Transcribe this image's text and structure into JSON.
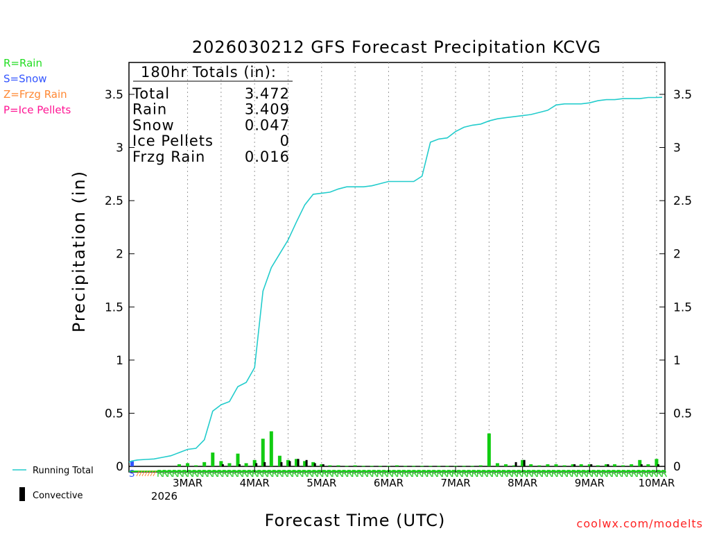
{
  "chart_data": {
    "type": "line",
    "title": "2026030212 GFS Forecast Precipitation KCVG",
    "xlabel": "Forecast Time (UTC)",
    "ylabel": "Precipitation (in)",
    "ylim": [
      0,
      3.8
    ],
    "xlim_hours": [
      -9,
      183
    ],
    "yticks": [
      "0",
      "0.5",
      "1",
      "1.5",
      "2",
      "2.5",
      "3",
      "3.5"
    ],
    "ytick_values": [
      0,
      0.5,
      1,
      1.5,
      2,
      2.5,
      3,
      3.5
    ],
    "xticks": [
      {
        "label": "3MAR",
        "hour": 12
      },
      {
        "label": "4MAR",
        "hour": 36
      },
      {
        "label": "5MAR",
        "hour": 60
      },
      {
        "label": "6MAR",
        "hour": 84
      },
      {
        "label": "7MAR",
        "hour": 108
      },
      {
        "label": "8MAR",
        "hour": 132
      },
      {
        "label": "9MAR",
        "hour": 156
      },
      {
        "label": "10MAR",
        "hour": 180
      }
    ],
    "year_label": "2026",
    "type_legend": [
      {
        "label": "R=Rain",
        "color": "#22dd22"
      },
      {
        "label": "S=Snow",
        "color": "#3355ff"
      },
      {
        "label": "Z=Frzg Rain",
        "color": "#ff8833"
      },
      {
        "label": "P=Ice Pellets",
        "color": "#ff1493"
      }
    ],
    "totals_box": {
      "heading": "180hr Totals (in):",
      "rows": [
        {
          "label": "Total",
          "value": "3.472"
        },
        {
          "label": "Rain",
          "value": "3.409"
        },
        {
          "label": "Snow",
          "value": "0.047"
        },
        {
          "label": "Ice Pellets",
          "value": "0"
        },
        {
          "label": "Frzg Rain",
          "value": "0.016"
        }
      ]
    },
    "series": [
      {
        "name": "Running Total",
        "color": "#22cccc",
        "x_hours": [
          -9,
          -8,
          -6,
          -3,
          0,
          3,
          6,
          9,
          12,
          15,
          18,
          21,
          24,
          27,
          30,
          33,
          36,
          39,
          42,
          45,
          48,
          51,
          54,
          57,
          60,
          63,
          66,
          69,
          72,
          75,
          78,
          81,
          84,
          87,
          90,
          93,
          96,
          99,
          102,
          105,
          108,
          111,
          114,
          117,
          120,
          123,
          126,
          129,
          132,
          135,
          138,
          141,
          144,
          147,
          150,
          153,
          156,
          159,
          162,
          165,
          168,
          171,
          174,
          177,
          180,
          182
        ],
        "values": [
          0.04,
          0.05,
          0.06,
          0.065,
          0.07,
          0.085,
          0.1,
          0.13,
          0.16,
          0.17,
          0.25,
          0.52,
          0.58,
          0.61,
          0.75,
          0.79,
          0.93,
          1.65,
          1.87,
          2.0,
          2.13,
          2.3,
          2.46,
          2.56,
          2.57,
          2.58,
          2.61,
          2.63,
          2.63,
          2.63,
          2.64,
          2.66,
          2.68,
          2.68,
          2.68,
          2.68,
          2.73,
          3.05,
          3.08,
          3.09,
          3.15,
          3.19,
          3.21,
          3.22,
          3.25,
          3.27,
          3.28,
          3.29,
          3.3,
          3.31,
          3.33,
          3.35,
          3.4,
          3.41,
          3.41,
          3.41,
          3.42,
          3.44,
          3.45,
          3.45,
          3.46,
          3.46,
          3.46,
          3.47,
          3.47,
          3.472
        ]
      },
      {
        "name": "Rain (3-hr)",
        "color": "#11cc11",
        "x_hours": [
          9,
          12,
          15,
          18,
          21,
          24,
          27,
          30,
          33,
          36,
          39,
          42,
          45,
          48,
          51,
          54,
          57,
          60,
          63,
          66,
          69,
          72,
          75,
          78,
          81,
          84,
          87,
          90,
          93,
          96,
          99,
          102,
          105,
          108,
          111,
          114,
          117,
          120,
          123,
          126,
          129,
          132,
          135,
          138,
          141,
          144,
          147,
          150,
          153,
          156,
          159,
          162,
          165,
          168,
          171,
          174,
          177,
          180
        ],
        "values": [
          0.02,
          0.03,
          0.01,
          0.04,
          0.13,
          0.05,
          0.03,
          0.12,
          0.03,
          0.06,
          0.26,
          0.33,
          0.1,
          0.06,
          0.07,
          0.05,
          0.04,
          0.02,
          0.01,
          0.01,
          0.005,
          0.01,
          0.005,
          0.005,
          0.005,
          0.005,
          0.01,
          0.005,
          0.005,
          0.005,
          0.005,
          0.005,
          0.005,
          0.005,
          0.005,
          0.005,
          0.01,
          0.31,
          0.03,
          0.02,
          0.01,
          0.06,
          0.02,
          0.01,
          0.02,
          0.02,
          0.01,
          0.02,
          0.02,
          0.02,
          0.01,
          0.02,
          0.02,
          0.01,
          0.02,
          0.06,
          0.02,
          0.07
        ]
      },
      {
        "name": "Convective",
        "color": "#000000",
        "x_hours": [
          24,
          30,
          36,
          39,
          45,
          48,
          51,
          54,
          57,
          60,
          129,
          132,
          150,
          156,
          162,
          174,
          180
        ],
        "values": [
          0.02,
          0.02,
          0.03,
          0.04,
          0.04,
          0.05,
          0.07,
          0.06,
          0.03,
          0.02,
          0.04,
          0.06,
          0.02,
          0.02,
          0.02,
          0.02,
          0.02
        ]
      }
    ],
    "ptype_strip": {
      "rain_symbol": "R",
      "snow_symbol": "S",
      "frzg_symbol": "Z"
    },
    "bottom_legend": [
      {
        "label": "Running Total",
        "color": "#22cccc"
      },
      {
        "label": "Convective",
        "color": "#000000"
      }
    ],
    "credit": "coolwx.com/modelts"
  }
}
